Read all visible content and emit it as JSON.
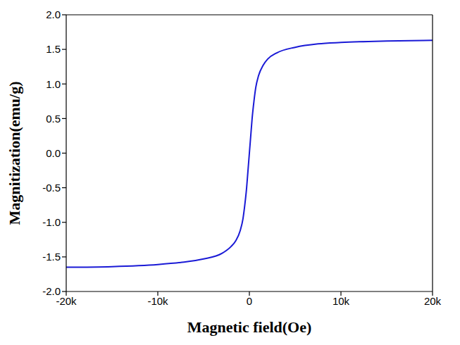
{
  "chart_data": {
    "type": "line",
    "x_label": "Magnetic field(Oe)",
    "y_label": "Magnitization(emu/g)",
    "x": [
      -20000,
      -15000,
      -10000,
      -7500,
      -5000,
      -3000,
      -2000,
      -1500,
      -1000,
      -700,
      -500,
      -300,
      -150,
      0,
      150,
      300,
      500,
      700,
      1000,
      1500,
      2000,
      3000,
      5000,
      7500,
      10000,
      15000,
      20000
    ],
    "values": [
      -1.65,
      -1.64,
      -1.61,
      -1.58,
      -1.53,
      -1.45,
      -1.35,
      -1.27,
      -1.12,
      -0.95,
      -0.75,
      -0.5,
      -0.25,
      0,
      0.25,
      0.5,
      0.75,
      0.95,
      1.12,
      1.27,
      1.36,
      1.45,
      1.53,
      1.58,
      1.6,
      1.62,
      1.63
    ],
    "color": "#1a1ad6",
    "xlim": [
      -20000,
      20000
    ],
    "xticks": [
      {
        "value": -20000,
        "label": "-20k"
      },
      {
        "value": -10000,
        "label": "-10k"
      },
      0,
      {
        "value": 10000,
        "label": "10k"
      },
      {
        "value": 20000,
        "label": "20k"
      }
    ],
    "ylim": [
      -2,
      2
    ],
    "yticks": [
      {
        "value": -2,
        "label": "-2.0"
      },
      -1.5,
      {
        "value": -1,
        "label": "-1.0"
      },
      -0.5,
      {
        "value": 0,
        "label": "0.0"
      },
      0.5,
      {
        "value": 1,
        "label": "1.0"
      },
      1.5,
      {
        "value": 2,
        "label": "2.0"
      }
    ],
    "grid": false
  }
}
